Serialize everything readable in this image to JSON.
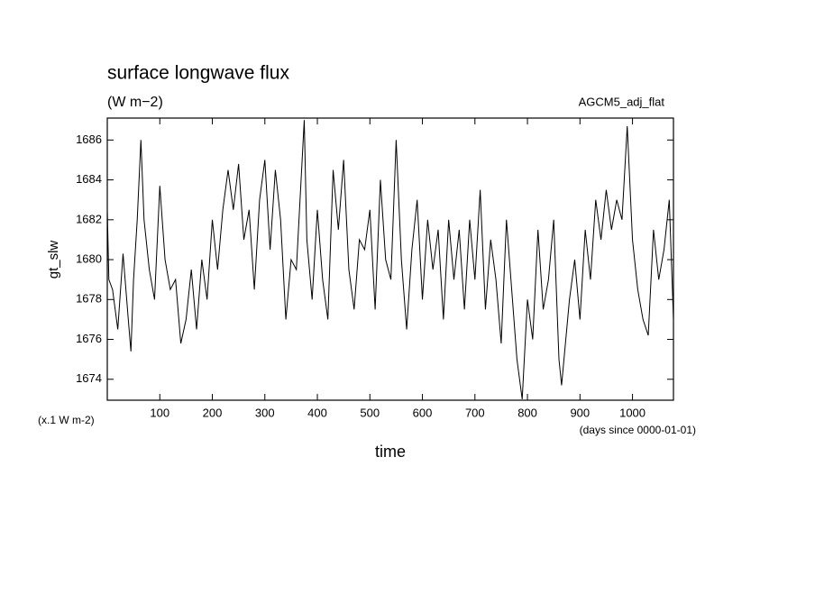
{
  "chart_data": {
    "type": "line",
    "title": "surface longwave flux",
    "subtitle": "(W m−2)",
    "annotation": "AGCM5_adj_flat",
    "y_label": "gt_slw",
    "x_label": "time",
    "y_unit_note": "(x.1 W m-2)",
    "x_unit_note": "(days since 0000-01-01)",
    "x": [
      0,
      3,
      10,
      20,
      30,
      40,
      45,
      50,
      57,
      64,
      70,
      80,
      90,
      100,
      110,
      120,
      130,
      140,
      150,
      160,
      170,
      180,
      190,
      200,
      210,
      220,
      230,
      240,
      250,
      260,
      270,
      280,
      290,
      300,
      310,
      320,
      330,
      340,
      350,
      360,
      375,
      380,
      390,
      400,
      410,
      420,
      430,
      440,
      450,
      460,
      470,
      480,
      490,
      500,
      510,
      520,
      530,
      540,
      550,
      560,
      570,
      580,
      590,
      600,
      610,
      620,
      630,
      640,
      650,
      660,
      670,
      680,
      690,
      700,
      710,
      720,
      730,
      740,
      750,
      760,
      770,
      780,
      790,
      800,
      810,
      820,
      830,
      840,
      850,
      860,
      865,
      880,
      890,
      900,
      910,
      920,
      930,
      940,
      950,
      960,
      970,
      980,
      990,
      1000,
      1010,
      1020,
      1030,
      1040,
      1050,
      1060,
      1070,
      1078
    ],
    "series": [
      {
        "name": "gt_slw",
        "color": "#000000",
        "values": [
          1682.5,
          1679,
          1678.5,
          1676.5,
          1680.3,
          1677,
          1675.4,
          1679,
          1682,
          1686,
          1682,
          1679.5,
          1678,
          1683.7,
          1680,
          1678.5,
          1679,
          1675.8,
          1677,
          1679.5,
          1676.5,
          1680,
          1678,
          1682,
          1679.5,
          1682.5,
          1684.5,
          1682.5,
          1684.8,
          1681,
          1682.5,
          1678.5,
          1683,
          1685,
          1680.5,
          1684.5,
          1682,
          1677,
          1680,
          1679.5,
          1687,
          1681,
          1678,
          1682.5,
          1679,
          1677,
          1684.5,
          1681.5,
          1685,
          1679.5,
          1677.5,
          1681,
          1680.5,
          1682.5,
          1677.5,
          1684,
          1680,
          1679,
          1686,
          1680,
          1676.5,
          1680.5,
          1683,
          1678,
          1682,
          1679.5,
          1681.5,
          1677,
          1682,
          1679,
          1681.5,
          1677.5,
          1682,
          1679,
          1683.5,
          1677.5,
          1681,
          1679,
          1675.8,
          1682,
          1678.5,
          1675,
          1673,
          1678,
          1676,
          1681.5,
          1677.5,
          1679,
          1682,
          1675,
          1673.7,
          1678,
          1680,
          1677,
          1681.5,
          1679,
          1683,
          1681,
          1683.5,
          1681.5,
          1683,
          1682,
          1686.7,
          1681,
          1678.5,
          1677,
          1676.2,
          1681.5,
          1679,
          1680.5,
          1683,
          1677
        ]
      }
    ],
    "xlim": [
      0,
      1078
    ],
    "ylim": [
      1672.95,
      1687.1
    ],
    "xticks": [
      100,
      200,
      300,
      400,
      500,
      600,
      700,
      800,
      900,
      1000
    ],
    "yticks": [
      1674,
      1676,
      1678,
      1680,
      1682,
      1684,
      1686
    ]
  }
}
